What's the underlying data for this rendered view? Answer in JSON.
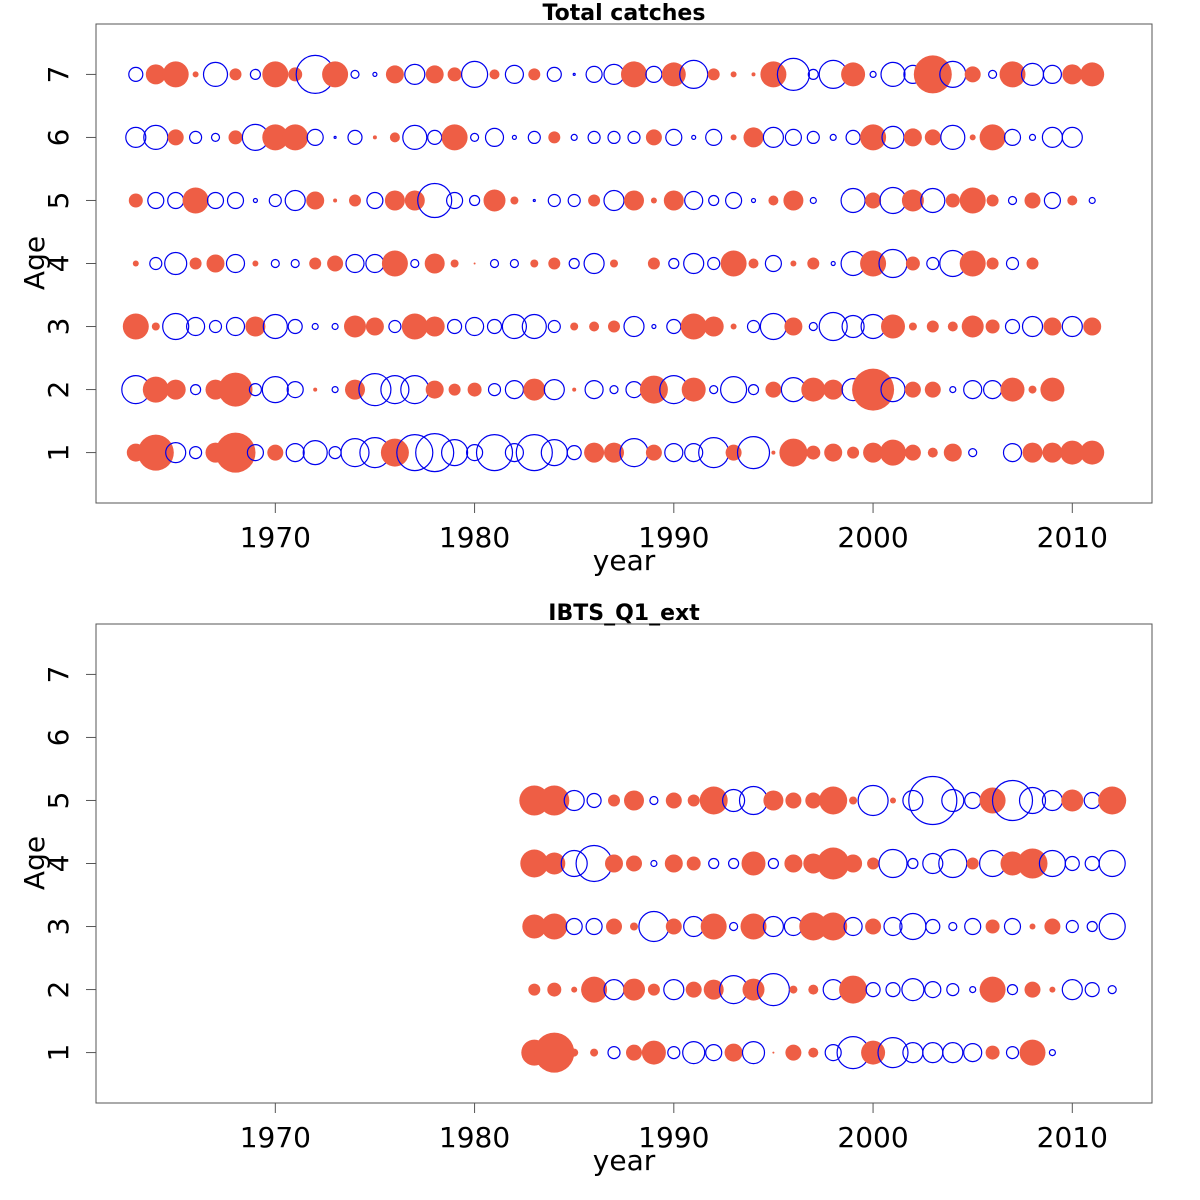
{
  "chart_data": [
    {
      "type": "scatter",
      "subtype": "bubble",
      "title": "Total catches",
      "xlabel": "year",
      "ylabel": "Age",
      "xlim": [
        1961,
        2014
      ],
      "ylim": [
        0.2,
        7.8
      ],
      "xticks": [
        "1970",
        "1980",
        "1990",
        "2000",
        "2010"
      ],
      "yticks": [
        "1",
        "2",
        "3",
        "4",
        "5",
        "6",
        "7"
      ],
      "positive_color": "#EE5E45",
      "negative_color": "#0000EE",
      "value_meaning": "signed residual; positive = filled circle, negative = open circle; radius proportional to magnitude",
      "x_start": 1963,
      "series": [
        {
          "age": 7,
          "values": [
            -0.7,
            1.0,
            1.3,
            0.3,
            -1.2,
            0.6,
            -0.5,
            1.3,
            0.7,
            -1.9,
            1.3,
            -0.4,
            -0.2,
            0.9,
            -1.0,
            0.9,
            0.7,
            -1.3,
            0.5,
            -0.9,
            0.6,
            -0.7,
            -0.1,
            -0.8,
            -1.0,
            1.3,
            -0.8,
            1.2,
            -1.4,
            0.6,
            0.3,
            0.2,
            1.3,
            -1.6,
            -0.5,
            -1.4,
            1.2,
            -0.3,
            -1.2,
            -0.9,
            1.9,
            -1.3,
            0.8,
            -0.4,
            1.3,
            -1.1,
            -0.9,
            1.0,
            1.2
          ]
        },
        {
          "age": 6,
          "values": [
            -1.0,
            -1.2,
            0.8,
            -0.6,
            -0.4,
            0.7,
            -1.3,
            1.3,
            1.3,
            -0.8,
            -0.1,
            -0.7,
            0.2,
            0.5,
            -1.2,
            -0.7,
            1.3,
            -0.4,
            -0.9,
            -0.2,
            -0.6,
            0.6,
            -0.3,
            -0.6,
            -0.6,
            -0.6,
            0.8,
            -0.8,
            -0.2,
            -0.8,
            0.3,
            1.0,
            -1.0,
            -0.8,
            -0.6,
            -0.3,
            -0.7,
            1.3,
            -1.1,
            0.9,
            0.8,
            -1.2,
            0.3,
            1.3,
            -0.8,
            -0.3,
            -1.0,
            -1.0
          ]
        },
        {
          "age": 5,
          "values": [
            0.7,
            -0.8,
            -0.8,
            1.3,
            -0.8,
            -0.8,
            -0.2,
            -0.6,
            -1.0,
            0.9,
            0.2,
            0.6,
            -0.8,
            1.0,
            1.0,
            -1.7,
            -0.8,
            -0.5,
            1.1,
            0.4,
            -0.1,
            -0.6,
            -0.6,
            0.6,
            -1.0,
            1.0,
            0.3,
            1.0,
            -0.9,
            -0.5,
            -0.8,
            -0.2,
            0.5,
            1.0,
            -0.3,
            0.0,
            -1.2,
            0.8,
            -1.3,
            1.1,
            -1.2,
            0.7,
            1.3,
            0.6,
            -0.4,
            0.8,
            -0.8,
            0.5,
            -0.3
          ]
        },
        {
          "age": 4,
          "values": [
            0.3,
            -0.6,
            -1.1,
            0.6,
            0.9,
            -0.9,
            0.3,
            -0.4,
            -0.4,
            0.6,
            0.8,
            -0.9,
            -0.9,
            1.3,
            -0.4,
            1.0,
            0.4,
            0.1,
            -0.4,
            -0.4,
            0.4,
            0.6,
            -0.5,
            -1.0,
            0.4,
            0.0,
            0.6,
            -0.5,
            -1.0,
            -0.6,
            1.3,
            0.5,
            -0.8,
            0.3,
            0.6,
            -0.2,
            -1.2,
            1.3,
            -1.4,
            0.7,
            -0.6,
            -1.3,
            1.3,
            0.6,
            -0.6,
            0.6
          ]
        },
        {
          "age": 3,
          "values": [
            1.3,
            0.4,
            -1.3,
            -0.9,
            -0.6,
            -0.9,
            1.0,
            -1.2,
            -0.7,
            -0.3,
            -0.3,
            1.1,
            0.9,
            -0.6,
            1.3,
            1.0,
            -0.7,
            -0.9,
            -0.7,
            -1.2,
            -1.2,
            -0.6,
            0.4,
            0.5,
            0.6,
            -1.0,
            -0.2,
            -0.7,
            1.3,
            1.0,
            0.3,
            -0.6,
            -1.3,
            0.9,
            -0.4,
            -1.4,
            -1.1,
            -1.2,
            1.2,
            0.4,
            0.6,
            0.5,
            1.1,
            0.7,
            -0.7,
            -1.0,
            0.9,
            -1.0,
            0.9
          ]
        },
        {
          "age": 2,
          "values": [
            -1.4,
            1.3,
            1.0,
            -0.5,
            1.0,
            1.7,
            -0.6,
            -1.3,
            -0.8,
            0.2,
            -0.3,
            1.0,
            -1.6,
            -1.4,
            -1.4,
            0.9,
            0.6,
            0.7,
            -0.6,
            -0.9,
            1.1,
            -1.0,
            0.2,
            -0.9,
            -0.4,
            -0.8,
            1.4,
            -1.4,
            1.2,
            -0.4,
            -1.3,
            -0.5,
            0.8,
            -1.2,
            1.2,
            1.0,
            -1.1,
            2.1,
            -1.2,
            0.8,
            0.8,
            -0.3,
            -0.9,
            -0.9,
            1.2,
            0.4,
            1.2
          ]
        },
        {
          "age": 1,
          "values": [
            0.9,
            1.8,
            -1.0,
            -0.6,
            1.0,
            2.0,
            -0.8,
            0.8,
            -0.9,
            -1.2,
            -0.6,
            -1.4,
            -1.5,
            1.4,
            -1.8,
            -1.9,
            -1.3,
            -0.8,
            -1.8,
            -0.9,
            -1.8,
            -1.3,
            -0.7,
            1.0,
            1.0,
            -1.4,
            0.8,
            -0.9,
            -0.9,
            -1.5,
            0.8,
            -1.6,
            0.2,
            1.4,
            0.7,
            0.9,
            0.6,
            1.0,
            1.3,
            0.8,
            0.5,
            0.9,
            -0.4,
            0.0,
            -0.9,
            1.0,
            1.0,
            1.2,
            1.2
          ]
        }
      ]
    },
    {
      "type": "scatter",
      "subtype": "bubble",
      "title": "IBTS_Q1_ext",
      "xlabel": "year",
      "ylabel": "Age",
      "xlim": [
        1961,
        2014
      ],
      "ylim": [
        0.2,
        7.8
      ],
      "xticks": [
        "1970",
        "1980",
        "1990",
        "2000",
        "2010"
      ],
      "yticks": [
        "1",
        "2",
        "3",
        "4",
        "5",
        "6",
        "7"
      ],
      "positive_color": "#EE5E45",
      "negative_color": "#0000EE",
      "x_start": 1983,
      "series": [
        {
          "age": 7,
          "values": []
        },
        {
          "age": 6,
          "values": []
        },
        {
          "age": 5,
          "values": [
            1.5,
            1.5,
            -1.0,
            -0.7,
            0.6,
            1.0,
            -0.4,
            0.8,
            0.6,
            1.4,
            -1.1,
            -1.4,
            1.0,
            0.8,
            0.8,
            1.4,
            0.4,
            -1.5,
            0.3,
            -1.0,
            -2.4,
            -1.1,
            -0.8,
            1.3,
            -2.0,
            -1.3,
            -1.0,
            1.1,
            -0.8,
            1.4
          ]
        },
        {
          "age": 4,
          "values": [
            1.4,
            1.1,
            -1.3,
            -1.8,
            0.9,
            0.8,
            -0.3,
            0.9,
            0.7,
            -0.5,
            -0.5,
            1.2,
            -0.5,
            0.9,
            1.0,
            1.6,
            0.9,
            0.6,
            -1.4,
            -0.5,
            -1.0,
            -1.4,
            0.6,
            -1.3,
            1.2,
            1.5,
            -1.3,
            -0.7,
            -0.7,
            -1.3
          ]
        },
        {
          "age": 3,
          "values": [
            1.2,
            1.3,
            -0.8,
            -0.8,
            0.8,
            0.4,
            -1.5,
            0.8,
            -1.0,
            1.3,
            -0.4,
            1.3,
            -1.0,
            -0.9,
            1.4,
            1.4,
            -0.9,
            0.8,
            -0.9,
            -1.3,
            -0.7,
            -0.4,
            -0.8,
            0.7,
            -0.8,
            0.3,
            0.8,
            -0.6,
            -0.5,
            -1.3
          ]
        },
        {
          "age": 2,
          "values": [
            0.6,
            0.7,
            0.3,
            1.3,
            -1.0,
            1.1,
            0.6,
            -1.0,
            0.8,
            1.0,
            -1.4,
            1.1,
            -1.6,
            0.4,
            0.5,
            -1.0,
            1.4,
            -0.7,
            -0.7,
            -1.1,
            -0.8,
            -0.6,
            -0.3,
            1.3,
            -0.5,
            0.8,
            0.3,
            -1.0,
            -0.7,
            -0.4
          ]
        },
        {
          "age": 1,
          "values": [
            1.3,
            2.0,
            0.4,
            0.4,
            -0.6,
            0.8,
            1.2,
            -0.6,
            -1.1,
            -0.8,
            0.9,
            -1.1,
            0.1,
            0.8,
            0.5,
            -0.8,
            -1.6,
            1.2,
            -1.5,
            -1.0,
            -1.0,
            -1.0,
            -0.9,
            0.7,
            -0.6,
            1.3,
            -0.3
          ]
        }
      ]
    }
  ]
}
